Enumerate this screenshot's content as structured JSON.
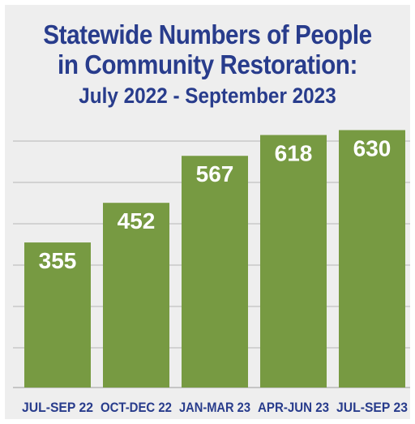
{
  "chart_data": {
    "type": "bar",
    "title": "Statewide Numbers of People in Community Restoration:",
    "title_lines": [
      "Statewide Numbers of People",
      "in Community Restoration:"
    ],
    "subtitle": "July 2022 - September 2023",
    "xlabel": "",
    "ylabel": "",
    "categories": [
      "JUL-SEP 22",
      "OCT-DEC 22",
      "JAN-MAR 23",
      "APR-JUN 23",
      "JUL-SEP 23"
    ],
    "values": [
      355,
      452,
      567,
      618,
      630
    ],
    "value_labels": [
      "355",
      "452",
      "567",
      "618",
      "630"
    ],
    "ylim": [
      0,
      650
    ],
    "grid": true,
    "legend": "none"
  },
  "colors": {
    "bar": "#779a42",
    "value_text": "#ffffff",
    "title": "#283c8c",
    "tick_text": "#283c8c",
    "grid": "#b7b7b7",
    "background": "#eeeeee"
  }
}
